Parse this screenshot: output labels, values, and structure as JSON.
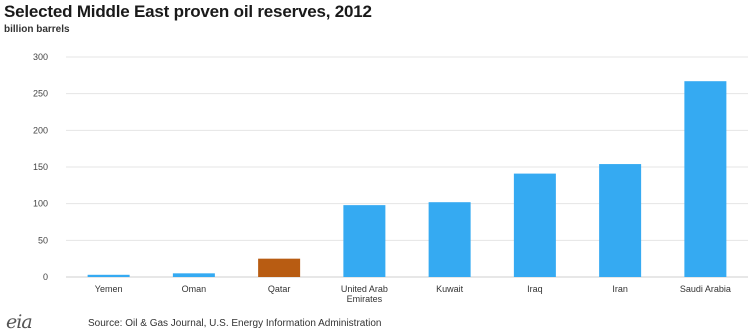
{
  "chart_data": {
    "type": "bar",
    "title": "Selected Middle East proven oil reserves, 2012",
    "ylabel": "billion barrels",
    "xlabel": "",
    "categories": [
      "Yemen",
      "Oman",
      "Qatar",
      "United Arab Emirates",
      "Kuwait",
      "Iraq",
      "Iran",
      "Saudi Arabia"
    ],
    "values": [
      3,
      5,
      25,
      98,
      102,
      141,
      154,
      267
    ],
    "colors": [
      "#35aaf2",
      "#35aaf2",
      "#b85c12",
      "#35aaf2",
      "#35aaf2",
      "#35aaf2",
      "#35aaf2",
      "#35aaf2"
    ],
    "ylim": [
      0,
      300
    ],
    "yticks": [
      0,
      50,
      100,
      150,
      200,
      250,
      300
    ],
    "grid": true
  },
  "footer": {
    "logo_text": "eia",
    "source": "Source: Oil & Gas Journal, U.S. Energy Information Administration"
  }
}
